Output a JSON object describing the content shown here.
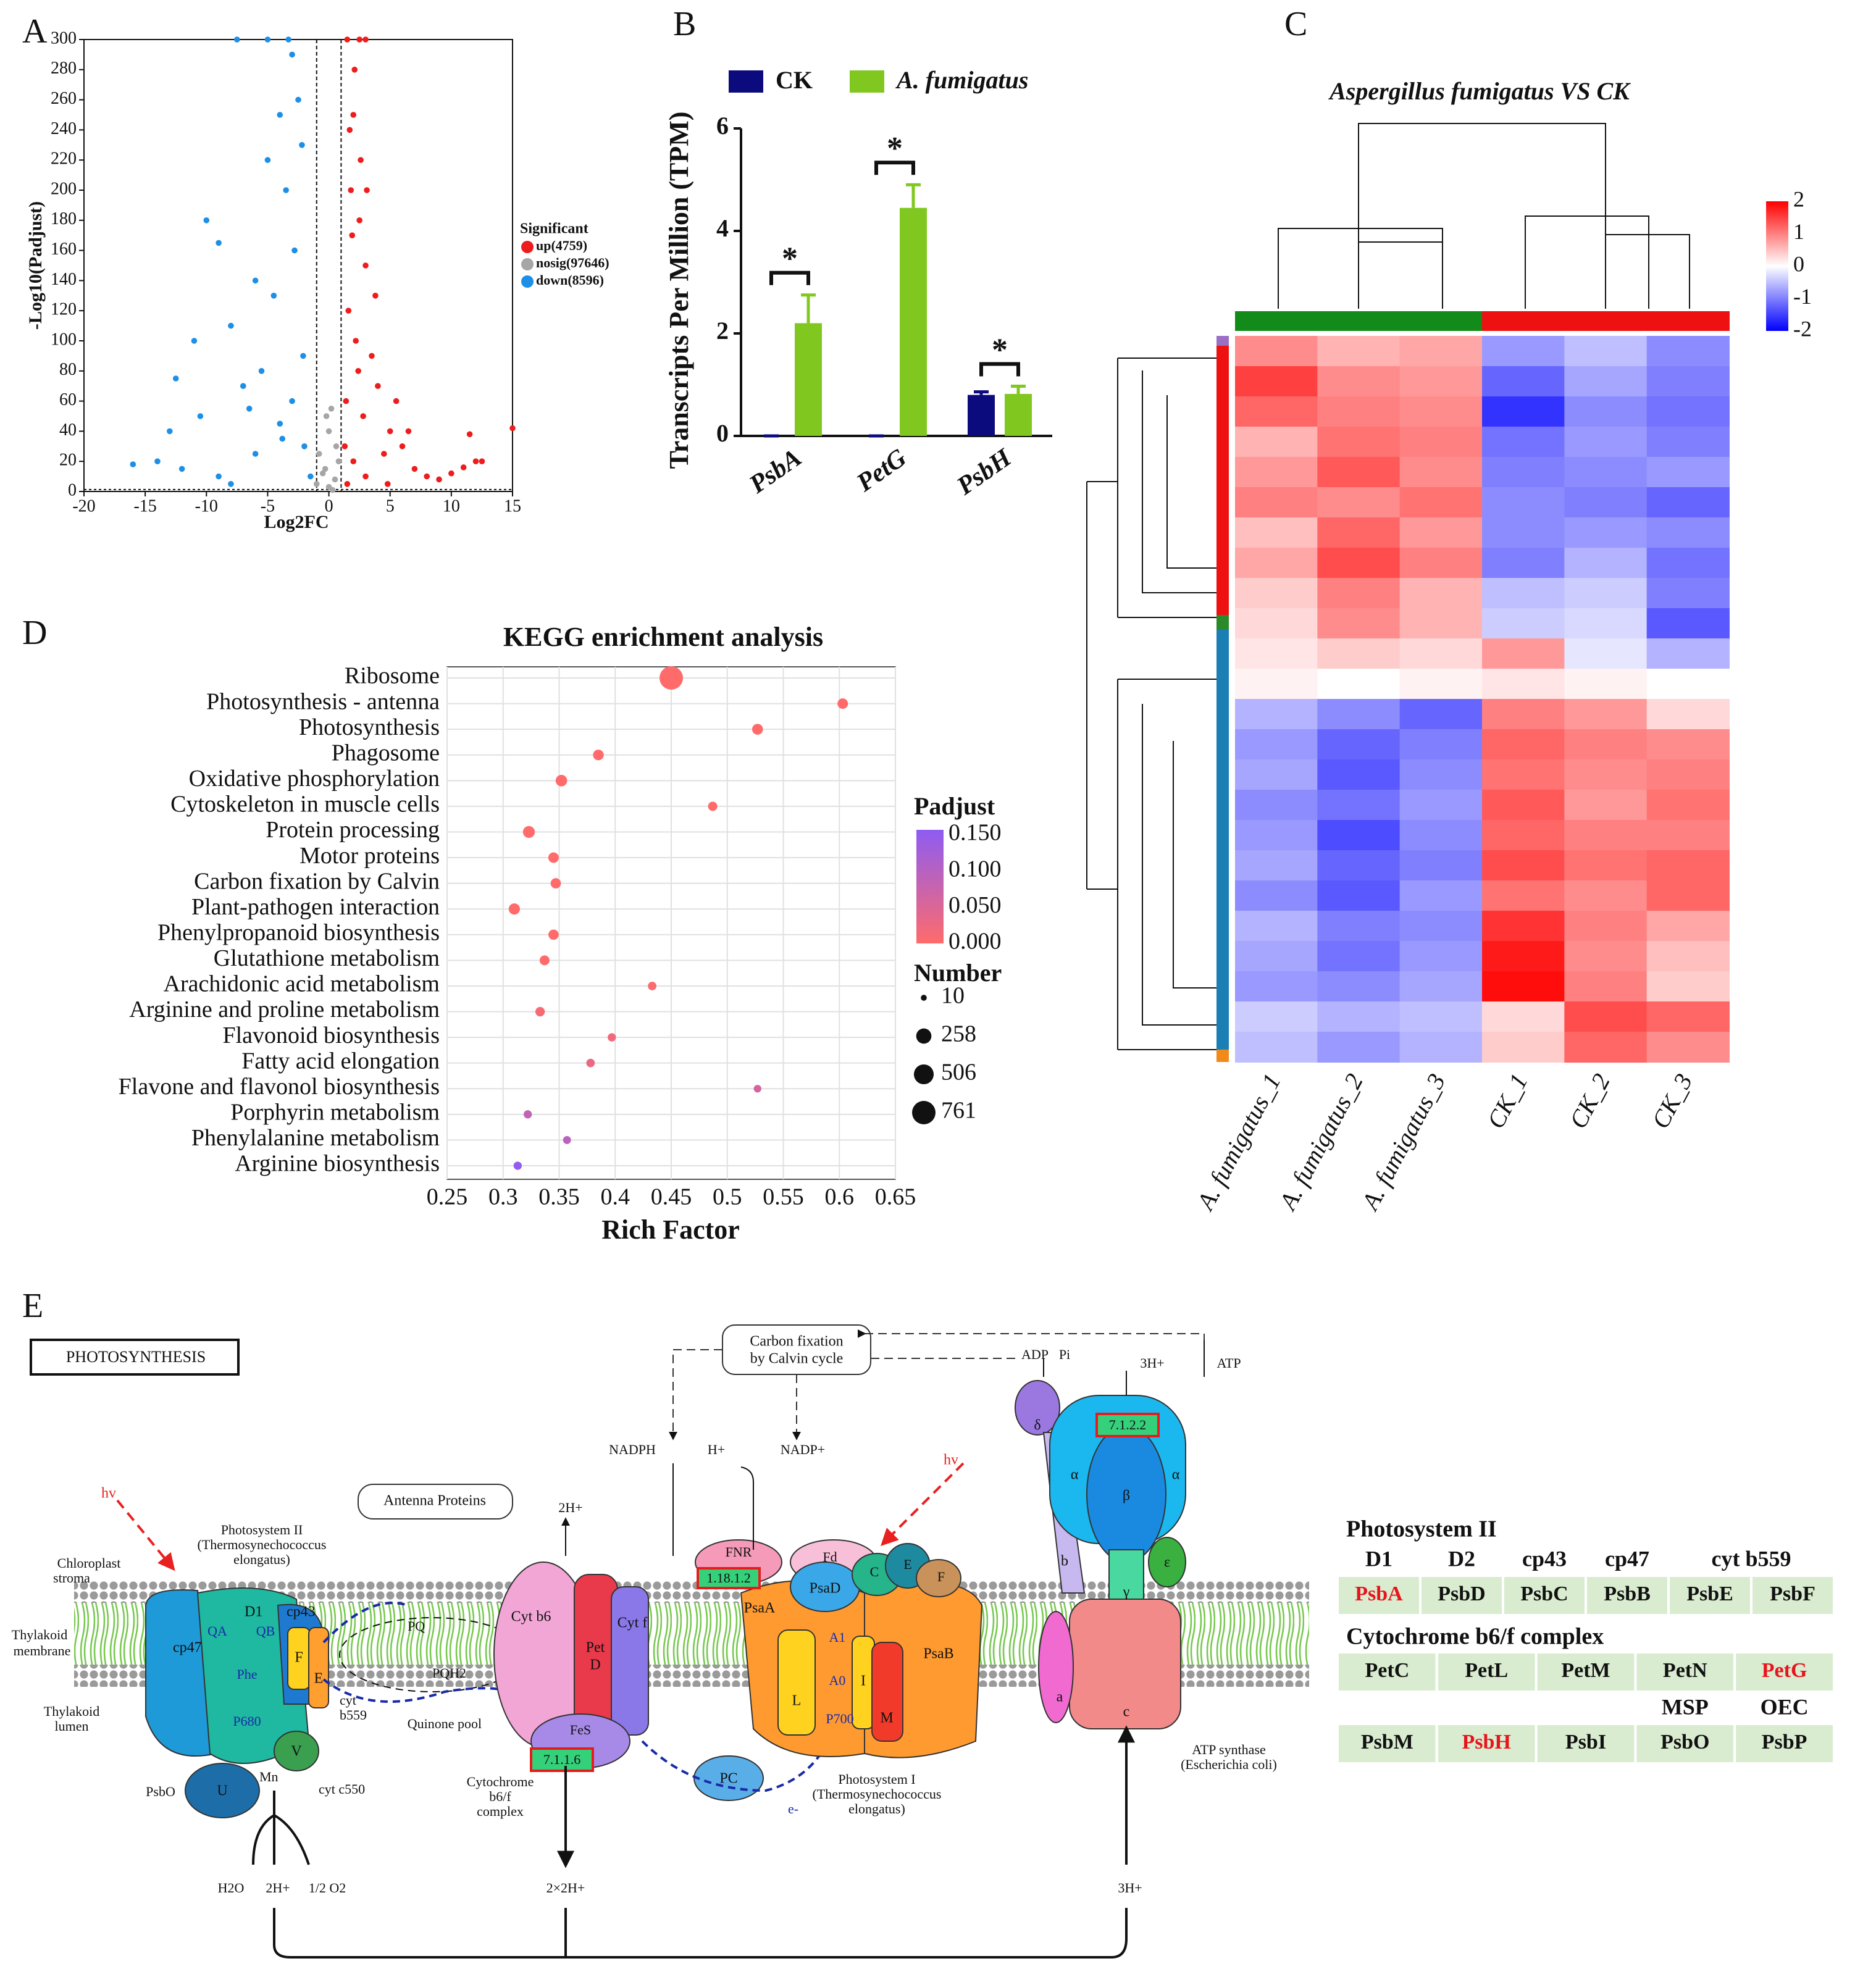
{
  "chart_data": [
    {
      "type": "volcano",
      "panel": "A",
      "xlabel": "Log2FC",
      "ylabel": "-Log10(Padjust)",
      "legend_title": "Significant",
      "series": [
        {
          "name": "up(4759)",
          "color": "#ee1c1c",
          "x": [
            1.5,
            2,
            1.8,
            2.5,
            3,
            1.6,
            2.2,
            3.5,
            4,
            1.4,
            2.8,
            5,
            6,
            4.5,
            7,
            8,
            9,
            10,
            11,
            12,
            12.5,
            2.1,
            1.7,
            2.6,
            3.1,
            1.9,
            3.8,
            2.4,
            5.5,
            6.5,
            15,
            11.5,
            1.3,
            2,
            3,
            1.5,
            4.8,
            2.5,
            3
          ],
          "y": [
            300,
            250,
            200,
            180,
            150,
            120,
            100,
            90,
            70,
            60,
            50,
            40,
            30,
            25,
            15,
            10,
            8,
            12,
            16,
            20,
            20,
            280,
            240,
            220,
            200,
            170,
            130,
            80,
            60,
            40,
            42,
            38,
            30,
            20,
            10,
            5,
            5,
            300,
            300
          ]
        },
        {
          "name": "nosig(97646)",
          "color": "#a6a6a6",
          "x": [
            -1,
            0,
            0.5,
            -0.5,
            0.8,
            -0.8,
            0.3,
            0,
            -0.3,
            0.6,
            0.2,
            -0.2
          ],
          "y": [
            5,
            3,
            8,
            12,
            20,
            25,
            1,
            40,
            15,
            30,
            55,
            50
          ]
        },
        {
          "name": "down(8596)",
          "color": "#1e8fe6",
          "x": [
            -3,
            -2.5,
            -4,
            -2.2,
            -5,
            -3.5,
            -10,
            -9,
            -2.8,
            -6,
            -4.5,
            -8,
            -11,
            -2.1,
            -5.5,
            -7,
            -3,
            -13,
            -14,
            -16,
            -12,
            -9,
            -6,
            -4,
            -2,
            -1.5,
            -8,
            -10.5,
            -7.5,
            -5,
            -3.3,
            -12.5,
            -6.5,
            -3.8
          ],
          "y": [
            290,
            260,
            250,
            230,
            220,
            200,
            180,
            165,
            160,
            140,
            130,
            110,
            100,
            90,
            80,
            70,
            60,
            40,
            20,
            18,
            15,
            10,
            25,
            45,
            30,
            10,
            5,
            50,
            300,
            300,
            300,
            75,
            55,
            35
          ]
        }
      ],
      "xlim": [
        -20,
        15
      ],
      "xticks": [
        -20,
        -15,
        -10,
        -5,
        0,
        5,
        10,
        15
      ],
      "ylim": [
        0,
        300
      ],
      "yticks": [
        0,
        20,
        40,
        60,
        80,
        100,
        120,
        140,
        160,
        180,
        200,
        220,
        240,
        260,
        280,
        300
      ],
      "threshold_x": [
        -1,
        1
      ],
      "threshold_y": 1.3
    },
    {
      "type": "bar",
      "panel": "B",
      "ylabel": "Transcripts Per Million (TPM)",
      "categories": [
        "PsbA",
        "PetG",
        "PsbH"
      ],
      "series": [
        {
          "name": "CK",
          "color": "#0b0b7d",
          "values": [
            0,
            0,
            0.8
          ],
          "errors": [
            0,
            0,
            0.06
          ]
        },
        {
          "name": "A. fumigatus",
          "color": "#80c820",
          "values": [
            2.2,
            4.45,
            0.82
          ],
          "errors": [
            0.55,
            0.45,
            0.15
          ]
        }
      ],
      "significance": [
        "*",
        "*",
        "*"
      ],
      "ylim": [
        0,
        6
      ],
      "yticks": [
        0,
        2,
        4,
        6
      ]
    },
    {
      "type": "heatmap",
      "panel": "C",
      "title": "Aspergillus fumigatus  VS CK",
      "columns": [
        "A. fumigatus_1",
        "A. fumigatus_2",
        "A. fumigatus_3",
        "CK_1",
        "CK_2",
        "CK_3"
      ],
      "column_colors": [
        "#138b1b",
        "#138b1b",
        "#138b1b",
        "#ee1111",
        "#ee1111",
        "#ee1111"
      ],
      "values": [
        [
          0.9,
          0.6,
          0.7,
          -0.8,
          -0.5,
          -0.9
        ],
        [
          1.5,
          0.9,
          0.8,
          -1.2,
          -0.7,
          -1.0
        ],
        [
          1.2,
          1.0,
          0.9,
          -1.6,
          -0.9,
          -1.1
        ],
        [
          0.6,
          1.1,
          1.0,
          -1.1,
          -0.8,
          -1.0
        ],
        [
          0.8,
          1.3,
          0.9,
          -1.0,
          -0.9,
          -0.8
        ],
        [
          1.0,
          0.9,
          1.1,
          -0.9,
          -1.0,
          -1.2
        ],
        [
          0.5,
          1.2,
          0.8,
          -0.9,
          -0.8,
          -0.9
        ],
        [
          0.7,
          1.4,
          1.0,
          -1.0,
          -0.6,
          -1.1
        ],
        [
          0.4,
          1.0,
          0.6,
          -0.5,
          -0.4,
          -1.0
        ],
        [
          0.3,
          0.9,
          0.6,
          -0.4,
          -0.3,
          -1.3
        ],
        [
          0.2,
          0.4,
          0.3,
          0.8,
          -0.2,
          -0.6
        ],
        [
          0.1,
          0.0,
          0.1,
          0.2,
          0.1,
          0.0
        ],
        [
          -0.6,
          -0.9,
          -1.2,
          1.0,
          0.8,
          0.3
        ],
        [
          -0.8,
          -1.2,
          -1.0,
          1.2,
          1.0,
          0.9
        ],
        [
          -0.7,
          -1.3,
          -0.9,
          1.1,
          0.9,
          1.0
        ],
        [
          -0.9,
          -1.1,
          -0.8,
          1.3,
          0.8,
          1.1
        ],
        [
          -0.8,
          -1.4,
          -0.9,
          1.2,
          1.0,
          1.0
        ],
        [
          -0.7,
          -1.2,
          -1.0,
          1.4,
          1.1,
          1.2
        ],
        [
          -0.9,
          -1.3,
          -0.8,
          1.1,
          0.9,
          1.2
        ],
        [
          -0.6,
          -1.0,
          -0.9,
          1.6,
          1.0,
          0.7
        ],
        [
          -0.7,
          -1.1,
          -0.8,
          1.8,
          0.9,
          0.5
        ],
        [
          -0.8,
          -0.9,
          -0.7,
          1.9,
          1.0,
          0.4
        ],
        [
          -0.4,
          -0.6,
          -0.5,
          0.3,
          1.4,
          1.2
        ],
        [
          -0.5,
          -0.8,
          -0.6,
          0.4,
          1.2,
          0.9
        ]
      ],
      "colorscale": [
        "#0000ff",
        "#ffffff",
        "#ff0000"
      ],
      "clim": [
        -2,
        2
      ],
      "cticks": [
        2,
        1,
        0,
        -1,
        -2
      ]
    },
    {
      "type": "dot",
      "panel": "D",
      "title": "KEGG enrichment analysis",
      "xlabel": "Rich Factor",
      "categories": [
        "Ribosome",
        "Photosynthesis - antenna",
        "Photosynthesis",
        "Phagosome",
        "Oxidative phosphorylation",
        "Cytoskeleton in muscle cells",
        "Protein processing",
        "Motor proteins",
        "Carbon fixation by Calvin",
        "Plant-pathogen interaction",
        "Phenylpropanoid biosynthesis",
        "Glutathione metabolism",
        "Arachidonic acid metabolism",
        "Arginine and proline metabolism",
        "Flavonoid biosynthesis",
        "Fatty acid elongation",
        "Flavone and flavonol biosynthesis",
        "Porphyrin metabolism",
        "Phenylalanine metabolism",
        "Arginine biosynthesis"
      ],
      "values": [
        0.45,
        0.603,
        0.527,
        0.385,
        0.352,
        0.487,
        0.323,
        0.345,
        0.347,
        0.31,
        0.345,
        0.337,
        0.433,
        0.333,
        0.397,
        0.378,
        0.527,
        0.322,
        0.357,
        0.313
      ],
      "number": [
        761,
        90,
        100,
        95,
        120,
        60,
        130,
        90,
        85,
        110,
        85,
        75,
        45,
        65,
        40,
        45,
        30,
        40,
        35,
        40
      ],
      "padjust": [
        0,
        0,
        0,
        0,
        0,
        0,
        0,
        0,
        0,
        0,
        0,
        0,
        0.005,
        0.01,
        0.02,
        0.025,
        0.06,
        0.08,
        0.09,
        0.145
      ],
      "xlim": [
        0.25,
        0.65
      ],
      "xticks": [
        0.25,
        0.3,
        0.35,
        0.4,
        0.45,
        0.5,
        0.55,
        0.6,
        0.65
      ],
      "grid": true,
      "color_legend_title": "Padjust",
      "colorscale": [
        "#ff6b6b",
        "#8e5cf2"
      ],
      "color_ticks": [
        {
          "value": 0.15,
          "label": "0.150"
        },
        {
          "value": 0.1,
          "label": "0.100"
        },
        {
          "value": 0.05,
          "label": "0.050"
        },
        {
          "value": 0,
          "label": "0.000"
        }
      ],
      "size_legend_title": "Number",
      "size_ticks": [
        10,
        258,
        506,
        761
      ]
    }
  ],
  "diagram": {
    "panel": "E",
    "labels": {
      "title": "PHOTOSYNTHESIS",
      "antenna": "Antenna Proteins",
      "calvin1": "Carbon fixation",
      "calvin2": "by Calvin cycle",
      "stroma1": "Chloroplast",
      "stroma2": "stroma",
      "membrane1": "Thylakoid",
      "membrane2": "membrane",
      "lumen1": "Thylakoid",
      "lumen2": "lumen",
      "psii1": "Photosystem II",
      "psii2": "(Thermosynechococcus",
      "psii3": "elongatus)",
      "cyt1": "Cytochrome",
      "cyt2": "b6/f",
      "cyt3": "complex",
      "psi1": "Photosystem I",
      "psi2": "(Thermosynechococcus",
      "psi3": "elongatus)",
      "atp1": "ATP synthase",
      "atp2": "(Escherichia coli)",
      "quinone": "Quinone pool",
      "pq": "PQ",
      "pqh2": "PQH2",
      "pc": "PC",
      "hv1": "hv",
      "hv2": "hv",
      "nadph": "NADPH",
      "hplus": "H+",
      "nadp": "NADP+",
      "adp": "ADP",
      "pi": "Pi",
      "h3top": "3H+",
      "atp": "ATP",
      "h2top": "2H+",
      "h2o": "H2O",
      "h2bot": "2H+",
      "o2": "1/2 O2",
      "h22": "2×2H+",
      "h3bot": "3H+",
      "ec1": "1.18.1.2",
      "ec2": "7.1.1.6",
      "ec3": "7.1.2.2",
      "cp47": "cp47",
      "d1": "D1",
      "cp43": "cp43",
      "f": "F",
      "e": "E",
      "v": "V",
      "u": "U",
      "psbo": "PsbO",
      "mn": "Mn",
      "p680": "P680",
      "phe": "Phe",
      "qa": "QA",
      "qb": "QB",
      "cytb559a": "cyt",
      "cytb559b": "b559",
      "cytc550": "cyt c550",
      "cytb6": "Cyt b6",
      "pet": "Pet",
      "petd": "D",
      "cytf": "Cyt f",
      "fes": "FeS",
      "fnr": "FNR",
      "fd": "Fd",
      "psad": "PsaD",
      "psac": "C",
      "psae": "E",
      "psaf": "F",
      "psaa": "PsaA",
      "psab": "PsaB",
      "psal": "L",
      "psai": "I",
      "psam": "M",
      "a1": "A1",
      "a0": "A0",
      "p700": "P700",
      "delta": "δ",
      "alpha1": "α",
      "beta": "β",
      "alpha2": "α",
      "sb": "b",
      "sa": "a",
      "sc": "c",
      "gamma": "γ",
      "eps": "ε",
      "eminus": "e-"
    },
    "table": {
      "sections": [
        {
          "title": "Photosystem II",
          "headers": [
            "D1",
            "D2",
            "cp43",
            "cp47",
            "cyt b559"
          ],
          "cells": [
            {
              "text": "PsbA",
              "color": "#e8141c"
            },
            {
              "text": "PsbD",
              "color": "#111111"
            },
            {
              "text": "PsbC",
              "color": "#111111"
            },
            {
              "text": "PsbB",
              "color": "#111111"
            },
            {
              "text": "PsbE",
              "color": "#111111"
            },
            {
              "text": "PsbF",
              "color": "#111111"
            }
          ]
        },
        {
          "title": "Cytochrome b6/f complex",
          "headers": [],
          "cells": [
            {
              "text": "PetC",
              "color": "#111111"
            },
            {
              "text": "PetL",
              "color": "#111111"
            },
            {
              "text": "PetM",
              "color": "#111111"
            },
            {
              "text": "PetN",
              "color": "#111111"
            },
            {
              "text": "PetG",
              "color": "#e8141c"
            }
          ]
        },
        {
          "title": null,
          "headers": [
            "MSP",
            "OEC"
          ],
          "cells": [
            {
              "text": "PsbM",
              "color": "#111111"
            },
            {
              "text": "PsbH",
              "color": "#e8141c"
            },
            {
              "text": "PsbI",
              "color": "#111111"
            },
            {
              "text": "PsbO",
              "color": "#111111"
            },
            {
              "text": "PsbP",
              "color": "#111111"
            }
          ]
        }
      ]
    }
  }
}
